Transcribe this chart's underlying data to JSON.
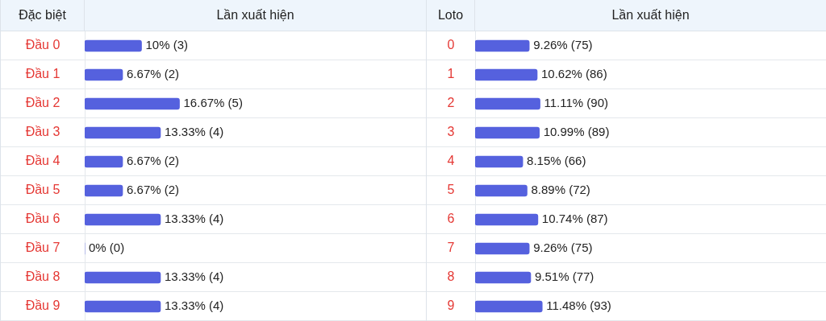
{
  "chart_data": [
    {
      "type": "bar",
      "orientation": "horizontal",
      "ylabel": "Đặc biệt",
      "xlabel": "Lần xuất hiện",
      "categories": [
        "Đầu 0",
        "Đầu 1",
        "Đầu 2",
        "Đầu 3",
        "Đầu 4",
        "Đầu 5",
        "Đầu 6",
        "Đầu 7",
        "Đầu 8",
        "Đầu 9"
      ],
      "values": [
        10,
        6.67,
        16.67,
        13.33,
        6.67,
        6.67,
        13.33,
        0,
        13.33,
        13.33
      ],
      "value_labels": [
        "10% (3)",
        "6.67% (2)",
        "16.67% (5)",
        "13.33% (4)",
        "6.67% (2)",
        "6.67% (2)",
        "13.33% (4)",
        "0% (0)",
        "13.33% (4)",
        "13.33% (4)"
      ],
      "color": "#5561de",
      "tick_labels": "y"
    },
    {
      "type": "bar",
      "orientation": "horizontal",
      "ylabel": "Loto",
      "xlabel": "Lần xuất hiện",
      "categories": [
        "0",
        "1",
        "2",
        "3",
        "4",
        "5",
        "6",
        "7",
        "8",
        "9"
      ],
      "values": [
        9.26,
        10.62,
        11.11,
        10.99,
        8.15,
        8.89,
        10.74,
        9.26,
        9.51,
        11.48
      ],
      "value_labels": [
        "9.26% (75)",
        "10.62% (86)",
        "11.11% (90)",
        "10.99% (89)",
        "8.15% (66)",
        "8.89% (72)",
        "10.74% (87)",
        "9.26% (75)",
        "9.51% (77)",
        "11.48% (93)"
      ],
      "color": "#5561de",
      "tick_labels": "y"
    }
  ]
}
